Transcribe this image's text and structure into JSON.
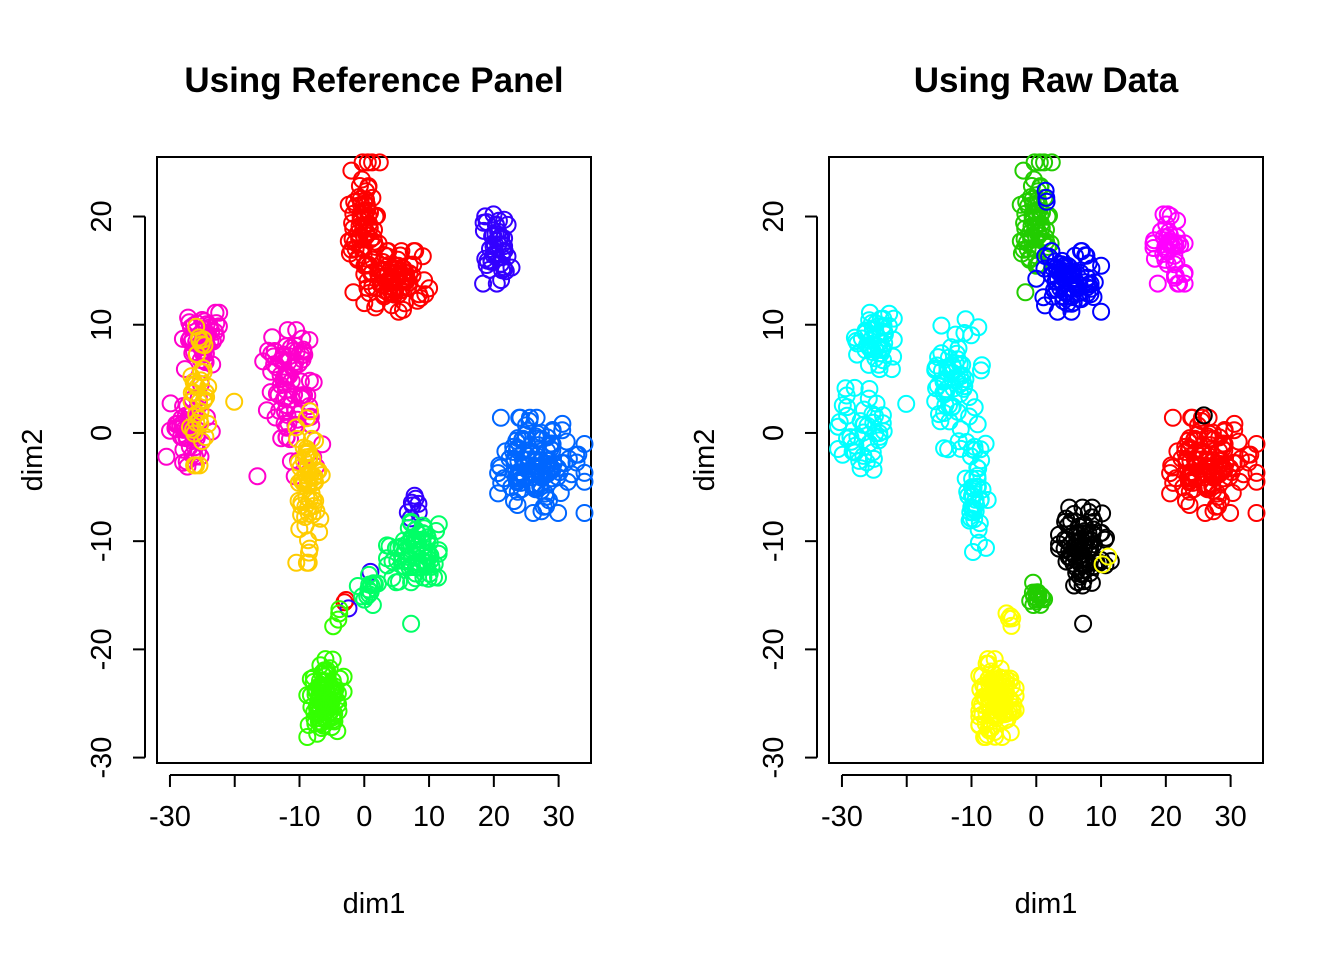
{
  "chart_data": [
    {
      "type": "scatter",
      "title": "Using Reference Panel",
      "xlabel": "dim1",
      "ylabel": "dim2",
      "xlim": [
        -32,
        35
      ],
      "ylim": [
        -30.5,
        25.5
      ],
      "xticks": [
        -30,
        -20,
        -10,
        0,
        10,
        20,
        30
      ],
      "xtick_labels": [
        "-30",
        "",
        "-10",
        "0",
        "10",
        "20",
        "30"
      ],
      "yticks": [
        -30,
        -20,
        -10,
        0,
        10,
        20
      ],
      "ytick_labels": [
        "-30",
        "-20",
        "-10",
        "0",
        "10",
        "20"
      ],
      "marker": "open-circle",
      "grid": false,
      "legend": "none",
      "clusters": [
        {
          "color": "#FF0000",
          "groups": [
            {
              "cx": 0,
              "cy": 19,
              "sx": 1.2,
              "sy": 3,
              "n": 70
            },
            {
              "cx": 5,
              "cy": 14,
              "sx": 2.5,
              "sy": 1.4,
              "n": 90
            },
            {
              "cx": -3,
              "cy": -15.6,
              "sx": 0.3,
              "sy": 0.3,
              "n": 2
            }
          ]
        },
        {
          "color": "#3300FF",
          "groups": [
            {
              "cx": 20.5,
              "cy": 17,
              "sx": 1.2,
              "sy": 1.6,
              "n": 45
            },
            {
              "cx": 7.5,
              "cy": -7,
              "sx": 0.5,
              "sy": 0.6,
              "n": 8
            },
            {
              "cx": 1,
              "cy": -13,
              "sx": 0.2,
              "sy": 0.2,
              "n": 1
            },
            {
              "cx": -2.5,
              "cy": -16.3,
              "sx": 0.2,
              "sy": 0.2,
              "n": 1
            }
          ]
        },
        {
          "color": "#FF00CC",
          "groups": [
            {
              "cx": -25,
              "cy": 8.5,
              "sx": 1.5,
              "sy": 1.3,
              "n": 50
            },
            {
              "cx": -27,
              "cy": 0.5,
              "sx": 1.8,
              "sy": 2,
              "n": 45
            },
            {
              "cx": -12,
              "cy": 6.5,
              "sx": 1.8,
              "sy": 1.5,
              "n": 45
            },
            {
              "cx": -11.5,
              "cy": 1,
              "sx": 2.5,
              "sy": 2.5,
              "n": 45
            }
          ]
        },
        {
          "color": "#FFCC00",
          "groups": [
            {
              "cx": -25.5,
              "cy": 4,
              "sx": 0.7,
              "sy": 3.5,
              "n": 40
            },
            {
              "cx": -8.5,
              "cy": -5,
              "sx": 1,
              "sy": 3.5,
              "n": 65
            },
            {
              "cx": -20,
              "cy": 2.8,
              "sx": 0.2,
              "sy": 0.2,
              "n": 1
            }
          ]
        },
        {
          "color": "#0066FF",
          "groups": [
            {
              "cx": 27,
              "cy": -3,
              "sx": 3.5,
              "sy": 2.2,
              "n": 130
            }
          ]
        },
        {
          "color": "#00FF66",
          "groups": [
            {
              "cx": 7.5,
              "cy": -11,
              "sx": 2,
              "sy": 1.4,
              "n": 80
            },
            {
              "cx": 0.5,
              "cy": -14.5,
              "sx": 0.8,
              "sy": 0.7,
              "n": 15
            },
            {
              "cx": 7,
              "cy": -17.5,
              "sx": 0.2,
              "sy": 0.2,
              "n": 1
            }
          ]
        },
        {
          "color": "#33FF00",
          "groups": [
            {
              "cx": -6,
              "cy": -24.5,
              "sx": 1.4,
              "sy": 1.8,
              "n": 110
            },
            {
              "cx": -4,
              "cy": -17.5,
              "sx": 0.4,
              "sy": 0.8,
              "n": 4
            }
          ]
        }
      ]
    },
    {
      "type": "scatter",
      "title": "Using Raw Data",
      "xlabel": "dim1",
      "ylabel": "dim2",
      "xlim": [
        -32,
        35
      ],
      "ylim": [
        -30.5,
        25.5
      ],
      "xticks": [
        -30,
        -20,
        -10,
        0,
        10,
        20,
        30
      ],
      "xtick_labels": [
        "-30",
        "",
        "-10",
        "0",
        "10",
        "20",
        "30"
      ],
      "yticks": [
        -30,
        -20,
        -10,
        0,
        10,
        20
      ],
      "ytick_labels": [
        "-30",
        "-20",
        "-10",
        "0",
        "10",
        "20"
      ],
      "marker": "open-circle",
      "grid": false,
      "legend": "none",
      "clusters": [
        {
          "color": "#22CC00",
          "groups": [
            {
              "cx": 0,
              "cy": 19,
              "sx": 1.2,
              "sy": 3,
              "n": 70
            }
          ]
        },
        {
          "color": "#0000FF",
          "groups": [
            {
              "cx": 5,
              "cy": 14,
              "sx": 2.5,
              "sy": 1.4,
              "n": 90
            },
            {
              "cx": 1.5,
              "cy": 21,
              "sx": 0.4,
              "sy": 1,
              "n": 3
            }
          ]
        },
        {
          "color": "#FF00FF",
          "groups": [
            {
              "cx": 20.5,
              "cy": 17,
              "sx": 1.2,
              "sy": 1.6,
              "n": 45
            }
          ]
        },
        {
          "color": "#00FFFF",
          "groups": [
            {
              "cx": -25,
              "cy": 8.5,
              "sx": 1.5,
              "sy": 1.3,
              "n": 50
            },
            {
              "cx": -27,
              "cy": 0.5,
              "sx": 1.8,
              "sy": 2,
              "n": 45
            },
            {
              "cx": -12,
              "cy": 4.5,
              "sx": 1.8,
              "sy": 3,
              "n": 70
            },
            {
              "cx": -9.5,
              "cy": -6,
              "sx": 1,
              "sy": 2.5,
              "n": 40
            },
            {
              "cx": -20,
              "cy": 2.8,
              "sx": 0.2,
              "sy": 0.2,
              "n": 1
            }
          ]
        },
        {
          "color": "#FF0000",
          "groups": [
            {
              "cx": 27,
              "cy": -3,
              "sx": 3.5,
              "sy": 2.2,
              "n": 130
            }
          ]
        },
        {
          "color": "#000000",
          "groups": [
            {
              "cx": 7.5,
              "cy": -10.5,
              "sx": 2,
              "sy": 1.8,
              "n": 85
            },
            {
              "cx": 26,
              "cy": 1.6,
              "sx": 0.2,
              "sy": 0.2,
              "n": 1
            },
            {
              "cx": 7,
              "cy": -17.5,
              "sx": 0.2,
              "sy": 0.2,
              "n": 1
            }
          ]
        },
        {
          "color": "#22CC00",
          "groups": [
            {
              "cx": 0,
              "cy": -15,
              "sx": 0.6,
              "sy": 0.6,
              "n": 18
            }
          ]
        },
        {
          "color": "#FFFF00",
          "groups": [
            {
              "cx": -6,
              "cy": -24.5,
              "sx": 1.4,
              "sy": 1.8,
              "n": 110
            },
            {
              "cx": -4,
              "cy": -17.5,
              "sx": 0.4,
              "sy": 0.8,
              "n": 5
            },
            {
              "cx": 10.5,
              "cy": -12,
              "sx": 0.3,
              "sy": 0.3,
              "n": 2
            }
          ]
        }
      ]
    }
  ]
}
